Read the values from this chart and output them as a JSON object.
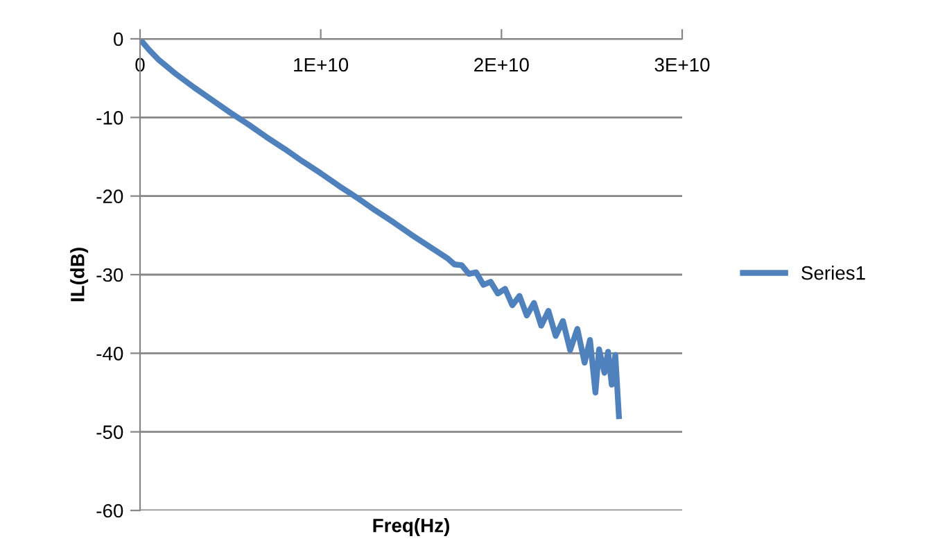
{
  "chart_data": {
    "type": "line",
    "xlabel": "Freq(Hz)",
    "ylabel": "IL(dB)",
    "xlim": [
      0,
      30000000000.0
    ],
    "xticks": [
      0,
      {
        "value": 10000000000.0,
        "label": "1E+10"
      },
      {
        "value": 20000000000.0,
        "label": "2E+10"
      },
      {
        "value": 30000000000.0,
        "label": "3E+10"
      }
    ],
    "ylim": [
      -60,
      0
    ],
    "yticks": [
      -60,
      -50,
      -40,
      -30,
      -20,
      -10,
      0
    ],
    "grid": "y",
    "legend": "right",
    "marker": "none",
    "line_style": "solid",
    "x": [
      0,
      200000000.0,
      500000000.0,
      1000000000.0,
      2000000000.0,
      3000000000.0,
      4000000000.0,
      5000000000.0,
      6000000000.0,
      7000000000.0,
      8000000000.0,
      9000000000.0,
      10000000000.0,
      11000000000.0,
      12000000000.0,
      13000000000.0,
      14000000000.0,
      15000000000.0,
      16000000000.0,
      17000000000.0,
      17400000000.0,
      17800000000.0,
      18200000000.0,
      18600000000.0,
      19000000000.0,
      19400000000.0,
      19800000000.0,
      20200000000.0,
      20600000000.0,
      21000000000.0,
      21400000000.0,
      21800000000.0,
      22200000000.0,
      22600000000.0,
      23000000000.0,
      23400000000.0,
      23800000000.0,
      24200000000.0,
      24600000000.0,
      24900000000.0,
      25200000000.0,
      25400000000.0,
      25700000000.0,
      25900000000.0,
      26100000000.0,
      26300000000.0,
      26500000000.0
    ],
    "series": [
      {
        "name": "Series1",
        "color": "#4f81bd",
        "values": [
          0,
          -0.6,
          -1.4,
          -2.6,
          -4.5,
          -6.2,
          -7.8,
          -9.4,
          -10.9,
          -12.5,
          -14,
          -15.6,
          -17.1,
          -18.7,
          -20.2,
          -21.8,
          -23.3,
          -24.9,
          -26.4,
          -27.9,
          -28.7,
          -28.8,
          -29.9,
          -29.7,
          -31.3,
          -30.9,
          -32.4,
          -31.8,
          -33.9,
          -32.7,
          -35.2,
          -33.6,
          -36.5,
          -34.6,
          -37.8,
          -35.9,
          -39.6,
          -36.9,
          -41.2,
          -38.3,
          -45,
          -39.5,
          -42.5,
          -39.8,
          -44,
          -40.2,
          -48
        ]
      }
    ]
  }
}
